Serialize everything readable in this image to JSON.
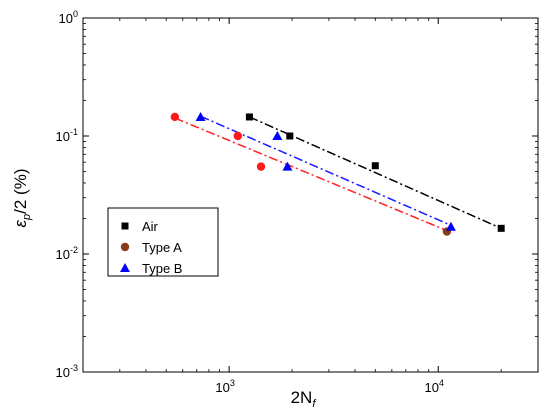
{
  "chart_data": {
    "type": "scatter",
    "title": "",
    "xlabel": "2N",
    "xlabel_sub": "f",
    "ylabel_symbol": "ε",
    "ylabel_sub": "p",
    "ylabel_rest": "/2 (%)",
    "xscale": "log",
    "yscale": "log",
    "xlim": [
      200,
      30000
    ],
    "ylim": [
      0.001,
      1
    ],
    "x_ticks": [
      {
        "base": "10",
        "exp": "3",
        "value": 1000
      },
      {
        "base": "10",
        "exp": "4",
        "value": 10000
      }
    ],
    "y_ticks": [
      {
        "base": "10",
        "exp": "-3",
        "value": 0.001
      },
      {
        "base": "10",
        "exp": "-2",
        "value": 0.01
      },
      {
        "base": "10",
        "exp": "-1",
        "value": 0.1
      },
      {
        "base": "10",
        "exp": "0",
        "value": 1
      }
    ],
    "grid": false,
    "legend_position": "lower-left",
    "series": [
      {
        "name": "Air",
        "marker": "square",
        "color": "#000000",
        "line_color": "#000000",
        "points": [
          [
            1250,
            0.145
          ],
          [
            1950,
            0.1
          ],
          [
            5000,
            0.056
          ],
          [
            20000,
            0.0165
          ]
        ],
        "fit": [
          [
            1250,
            0.145
          ],
          [
            20000,
            0.0165
          ]
        ]
      },
      {
        "name": "Type A",
        "marker": "circle",
        "color": "#8B3A1A",
        "point_colors": [
          "#ff1a1a",
          "#ff1a1a",
          "#ff1a1a",
          "#8B3A1A"
        ],
        "line_color": "#ff2020",
        "points": [
          [
            550,
            0.145
          ],
          [
            1100,
            0.1
          ],
          [
            1420,
            0.055
          ],
          [
            11000,
            0.0155
          ]
        ],
        "fit": [
          [
            550,
            0.142
          ],
          [
            11000,
            0.0158
          ]
        ]
      },
      {
        "name": "Type B",
        "marker": "triangle",
        "color": "#0000ff",
        "line_color": "#1a1aff",
        "points": [
          [
            730,
            0.145
          ],
          [
            1700,
            0.1
          ],
          [
            1900,
            0.055
          ],
          [
            11500,
            0.017
          ]
        ],
        "fit": [
          [
            730,
            0.147
          ],
          [
            11500,
            0.0175
          ]
        ]
      }
    ]
  }
}
